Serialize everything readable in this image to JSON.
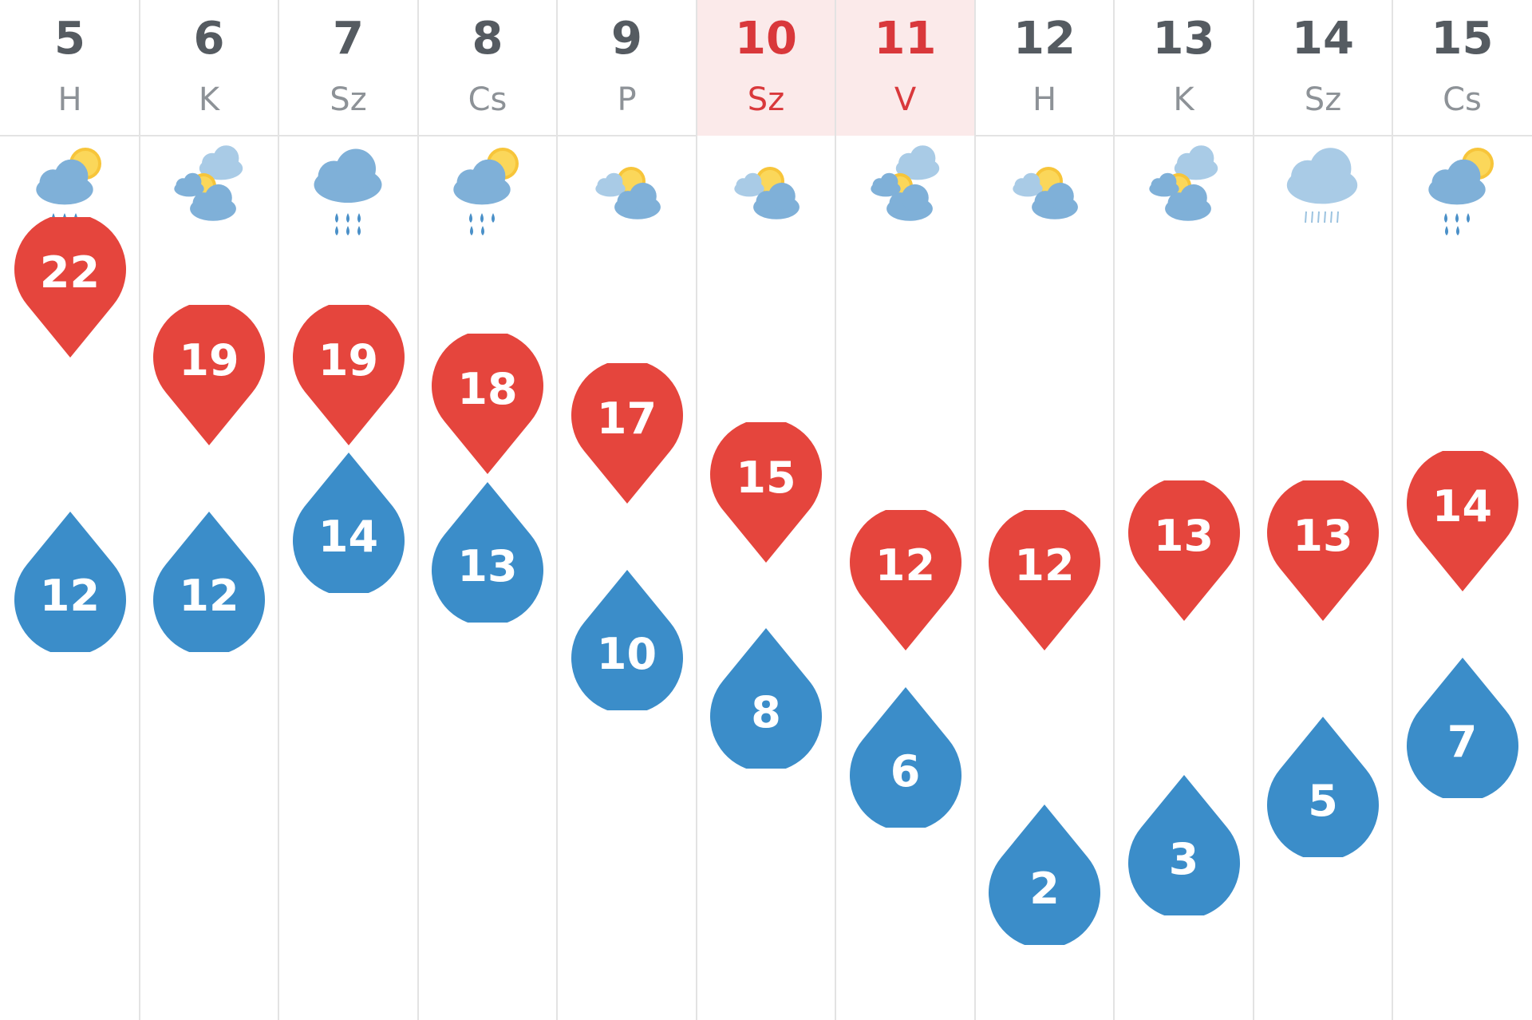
{
  "colors": {
    "high": "#e5453d",
    "low": "#3b8dc9",
    "weekend_bg": "#fbeaea",
    "weekend_text": "#d9383b"
  },
  "days": [
    {
      "num": "5",
      "abbr": "H",
      "icon": "showers-partly-sunny-icon",
      "high": 22,
      "low": 12,
      "weekend": false
    },
    {
      "num": "6",
      "abbr": "K",
      "icon": "partly-cloudy-icon",
      "high": 19,
      "low": 12,
      "weekend": false
    },
    {
      "num": "7",
      "abbr": "Sz",
      "icon": "rain-cloud-icon",
      "high": 19,
      "low": 14,
      "weekend": false
    },
    {
      "num": "8",
      "abbr": "Cs",
      "icon": "showers-partly-sunny-icon",
      "high": 18,
      "low": 13,
      "weekend": false
    },
    {
      "num": "9",
      "abbr": "P",
      "icon": "mostly-cloudy-sun-icon",
      "high": 17,
      "low": 10,
      "weekend": false
    },
    {
      "num": "10",
      "abbr": "Sz",
      "icon": "mostly-cloudy-sun-icon",
      "high": 15,
      "low": 8,
      "weekend": true
    },
    {
      "num": "11",
      "abbr": "V",
      "icon": "partly-cloudy-icon",
      "high": 12,
      "low": 6,
      "weekend": true
    },
    {
      "num": "12",
      "abbr": "H",
      "icon": "mostly-cloudy-sun-icon",
      "high": 12,
      "low": 2,
      "weekend": false
    },
    {
      "num": "13",
      "abbr": "K",
      "icon": "partly-cloudy-icon",
      "high": 13,
      "low": 3,
      "weekend": false
    },
    {
      "num": "14",
      "abbr": "Sz",
      "icon": "drizzle-cloud-icon",
      "high": 13,
      "low": 5,
      "weekend": false
    },
    {
      "num": "15",
      "abbr": "Cs",
      "icon": "showers-partly-sunny-icon",
      "high": 14,
      "low": 7,
      "weekend": false
    }
  ]
}
